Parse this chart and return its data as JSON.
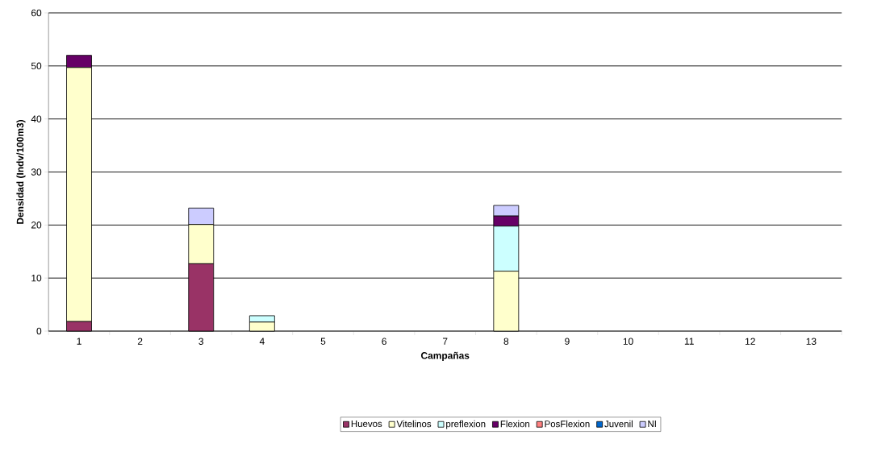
{
  "chart_data": {
    "type": "bar",
    "stacked": true,
    "xlabel": "Campañas",
    "ylabel": "Densidad (Indv/100m3)",
    "categories": [
      "1",
      "2",
      "3",
      "4",
      "5",
      "6",
      "7",
      "8",
      "9",
      "10",
      "11",
      "12",
      "13"
    ],
    "series": [
      {
        "name": "Huevos",
        "color": "#993366",
        "values": [
          1.8,
          0,
          12.7,
          0,
          0,
          0,
          0,
          0,
          0,
          0,
          0,
          0,
          0
        ]
      },
      {
        "name": "Vitelinos",
        "color": "#ffffcc",
        "values": [
          47.9,
          0,
          7.4,
          1.7,
          0,
          0,
          0,
          11.3,
          0,
          0,
          0,
          0,
          0
        ]
      },
      {
        "name": "preflexion",
        "color": "#ccffff",
        "values": [
          0,
          0,
          0,
          1.2,
          0,
          0,
          0,
          8.5,
          0,
          0,
          0,
          0,
          0
        ]
      },
      {
        "name": "Flexion",
        "color": "#660066",
        "values": [
          2.3,
          0,
          0,
          0,
          0,
          0,
          0,
          1.9,
          0,
          0,
          0,
          0,
          0
        ]
      },
      {
        "name": "PosFlexion",
        "color": "#ff8080",
        "values": [
          0,
          0,
          0,
          0,
          0,
          0,
          0,
          0,
          0,
          0,
          0,
          0,
          0
        ]
      },
      {
        "name": "Juvenil",
        "color": "#0066cc",
        "values": [
          0,
          0,
          0,
          0,
          0,
          0,
          0,
          0,
          0,
          0,
          0,
          0,
          0
        ]
      },
      {
        "name": "NI",
        "color": "#ccccff",
        "values": [
          0,
          0,
          3.1,
          0,
          0,
          0,
          0,
          2.0,
          0,
          0,
          0,
          0,
          0
        ]
      }
    ],
    "ylim": [
      0,
      60
    ],
    "yticks": [
      0,
      10,
      20,
      30,
      40,
      50,
      60
    ],
    "grid": "y",
    "legend": "bottom"
  }
}
